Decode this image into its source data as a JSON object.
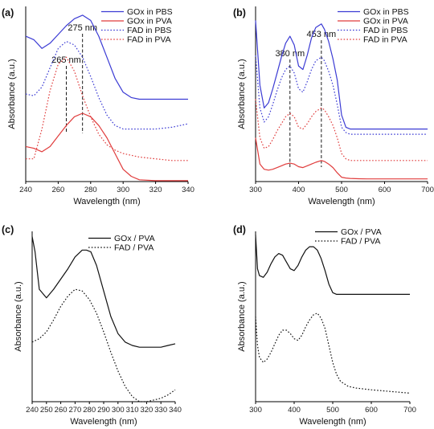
{
  "chart_data": [
    {
      "type": "line",
      "panel": "(a)",
      "xlabel": "Wavelength (nm)",
      "ylabel": "Absorbance (a.u.)",
      "xlim": [
        240,
        340
      ],
      "ylim": [
        0,
        1
      ],
      "xticks": [
        240,
        260,
        280,
        300,
        320,
        340
      ],
      "legend_position": "top-right",
      "annotations": [
        {
          "text": "265 nm",
          "x": 265
        },
        {
          "text": "275 nm",
          "x": 275
        }
      ],
      "series": [
        {
          "name": "GOx in PBS",
          "color": "#3b3bd4",
          "dash": "solid",
          "x": [
            240,
            245,
            250,
            255,
            260,
            265,
            270,
            275,
            280,
            285,
            290,
            295,
            300,
            305,
            310,
            320,
            330,
            340
          ],
          "y": [
            0.83,
            0.81,
            0.76,
            0.79,
            0.84,
            0.89,
            0.93,
            0.95,
            0.92,
            0.83,
            0.71,
            0.59,
            0.51,
            0.48,
            0.47,
            0.47,
            0.47,
            0.47
          ]
        },
        {
          "name": "GOx in PVA",
          "color": "#e03c3c",
          "dash": "solid",
          "x": [
            240,
            245,
            250,
            255,
            260,
            265,
            270,
            275,
            280,
            285,
            290,
            295,
            300,
            305,
            310,
            320,
            330,
            340
          ],
          "y": [
            0.2,
            0.19,
            0.17,
            0.2,
            0.26,
            0.32,
            0.37,
            0.39,
            0.37,
            0.32,
            0.25,
            0.16,
            0.07,
            0.03,
            0.01,
            0.005,
            0.005,
            0.005
          ]
        },
        {
          "name": "FAD in PBS",
          "color": "#3b3bd4",
          "dash": "dotted",
          "x": [
            240,
            245,
            250,
            255,
            260,
            265,
            270,
            275,
            280,
            285,
            290,
            295,
            300,
            305,
            310,
            320,
            330,
            340
          ],
          "y": [
            0.5,
            0.49,
            0.54,
            0.65,
            0.76,
            0.8,
            0.78,
            0.71,
            0.6,
            0.48,
            0.38,
            0.32,
            0.3,
            0.3,
            0.3,
            0.3,
            0.31,
            0.33
          ]
        },
        {
          "name": "FAD in PVA",
          "color": "#e03c3c",
          "dash": "dotted",
          "x": [
            240,
            245,
            250,
            255,
            260,
            265,
            270,
            275,
            280,
            285,
            290,
            295,
            300,
            305,
            310,
            320,
            330,
            340
          ],
          "y": [
            0.13,
            0.13,
            0.3,
            0.52,
            0.67,
            0.71,
            0.63,
            0.49,
            0.37,
            0.27,
            0.21,
            0.18,
            0.16,
            0.15,
            0.14,
            0.13,
            0.12,
            0.12
          ]
        }
      ]
    },
    {
      "type": "line",
      "panel": "(b)",
      "xlabel": "Wavelength (nm)",
      "ylabel": "Absorbance (a.u.)",
      "xlim": [
        300,
        700
      ],
      "ylim": [
        0,
        1
      ],
      "xticks": [
        300,
        400,
        500,
        600,
        700
      ],
      "legend_position": "top-right",
      "annotations": [
        {
          "text": "380 nm",
          "x": 380
        },
        {
          "text": "453 nm",
          "x": 453
        }
      ],
      "series": [
        {
          "name": "GOx in PBS",
          "color": "#3b3bd4",
          "dash": "solid",
          "x": [
            300,
            310,
            320,
            330,
            340,
            350,
            360,
            370,
            380,
            390,
            400,
            410,
            420,
            430,
            440,
            453,
            460,
            470,
            480,
            490,
            500,
            510,
            520,
            540,
            560,
            600,
            650,
            700
          ],
          "y": [
            0.92,
            0.55,
            0.42,
            0.45,
            0.53,
            0.62,
            0.71,
            0.79,
            0.83,
            0.78,
            0.66,
            0.64,
            0.72,
            0.82,
            0.88,
            0.9,
            0.87,
            0.8,
            0.7,
            0.58,
            0.38,
            0.31,
            0.3,
            0.3,
            0.3,
            0.3,
            0.3,
            0.3
          ]
        },
        {
          "name": "GOx in PVA",
          "color": "#e03c3c",
          "dash": "solid",
          "x": [
            300,
            310,
            320,
            330,
            340,
            350,
            360,
            370,
            380,
            390,
            400,
            410,
            420,
            430,
            440,
            453,
            460,
            470,
            480,
            490,
            500,
            510,
            520,
            540,
            560,
            600,
            650,
            700
          ],
          "y": [
            0.25,
            0.1,
            0.07,
            0.065,
            0.07,
            0.08,
            0.09,
            0.1,
            0.105,
            0.1,
            0.085,
            0.08,
            0.09,
            0.1,
            0.11,
            0.12,
            0.115,
            0.1,
            0.08,
            0.05,
            0.025,
            0.02,
            0.018,
            0.016,
            0.015,
            0.015,
            0.015,
            0.015
          ]
        },
        {
          "name": "FAD in PBS",
          "color": "#3b3bd4",
          "dash": "dotted",
          "x": [
            300,
            310,
            320,
            330,
            340,
            350,
            360,
            370,
            380,
            390,
            400,
            410,
            420,
            430,
            440,
            453,
            460,
            470,
            480,
            490,
            500,
            510,
            520,
            540,
            560,
            600,
            650,
            700
          ],
          "y": [
            0.72,
            0.42,
            0.34,
            0.37,
            0.44,
            0.52,
            0.59,
            0.64,
            0.66,
            0.62,
            0.53,
            0.51,
            0.57,
            0.64,
            0.69,
            0.71,
            0.69,
            0.63,
            0.55,
            0.44,
            0.31,
            0.28,
            0.27,
            0.27,
            0.27,
            0.27,
            0.27,
            0.27
          ]
        },
        {
          "name": "FAD in PVA",
          "color": "#e03c3c",
          "dash": "dotted",
          "x": [
            300,
            310,
            320,
            330,
            340,
            350,
            360,
            370,
            380,
            390,
            400,
            410,
            420,
            430,
            440,
            453,
            460,
            470,
            480,
            490,
            500,
            510,
            520,
            540,
            560,
            600,
            650,
            700
          ],
          "y": [
            0.47,
            0.25,
            0.19,
            0.2,
            0.24,
            0.29,
            0.33,
            0.37,
            0.39,
            0.37,
            0.31,
            0.3,
            0.33,
            0.37,
            0.4,
            0.42,
            0.41,
            0.37,
            0.32,
            0.25,
            0.16,
            0.13,
            0.12,
            0.12,
            0.12,
            0.12,
            0.12,
            0.12
          ]
        }
      ]
    },
    {
      "type": "line",
      "panel": "(c)",
      "xlabel": "Wavelength (nm)",
      "ylabel": "Absorbance (a.u.)",
      "xlim": [
        240,
        340
      ],
      "ylim": [
        0,
        1
      ],
      "xticks": [
        240,
        250,
        260,
        270,
        280,
        290,
        300,
        310,
        320,
        330,
        340
      ],
      "legend_position": "top-right",
      "series": [
        {
          "name": "GOx / PVA",
          "color": "#111111",
          "dash": "solid",
          "x": [
            240,
            242,
            245,
            250,
            255,
            260,
            265,
            270,
            275,
            278,
            281,
            285,
            290,
            295,
            300,
            305,
            310,
            315,
            320,
            325,
            330,
            335,
            340
          ],
          "y": [
            0.97,
            0.88,
            0.66,
            0.61,
            0.66,
            0.72,
            0.78,
            0.85,
            0.89,
            0.89,
            0.88,
            0.8,
            0.65,
            0.5,
            0.4,
            0.35,
            0.33,
            0.32,
            0.32,
            0.32,
            0.32,
            0.33,
            0.34
          ]
        },
        {
          "name": "FAD / PVA",
          "color": "#111111",
          "dash": "dotted",
          "x": [
            240,
            245,
            250,
            255,
            260,
            265,
            270,
            275,
            280,
            285,
            290,
            295,
            300,
            305,
            310,
            315,
            320,
            325,
            330,
            335,
            340
          ],
          "y": [
            0.35,
            0.37,
            0.41,
            0.48,
            0.56,
            0.62,
            0.66,
            0.65,
            0.6,
            0.52,
            0.41,
            0.29,
            0.18,
            0.09,
            0.03,
            0.0,
            0.0,
            0.01,
            0.02,
            0.04,
            0.07
          ]
        }
      ]
    },
    {
      "type": "line",
      "panel": "(d)",
      "xlabel": "Wavelength (nm)",
      "ylabel": "Absorbance (a.u.)",
      "xlim": [
        300,
        700
      ],
      "ylim": [
        0,
        1
      ],
      "xticks": [
        300,
        400,
        500,
        600,
        700
      ],
      "legend_position": "top-right",
      "series": [
        {
          "name": "GOx / PVA",
          "color": "#111111",
          "dash": "solid",
          "x": [
            300,
            305,
            310,
            320,
            330,
            340,
            350,
            360,
            370,
            380,
            390,
            400,
            410,
            420,
            430,
            440,
            450,
            460,
            470,
            480,
            490,
            500,
            510,
            520,
            540,
            560,
            600,
            650,
            700
          ],
          "y": [
            0.98,
            0.78,
            0.74,
            0.73,
            0.76,
            0.81,
            0.85,
            0.87,
            0.86,
            0.82,
            0.78,
            0.77,
            0.8,
            0.85,
            0.89,
            0.91,
            0.91,
            0.89,
            0.84,
            0.77,
            0.69,
            0.64,
            0.63,
            0.63,
            0.63,
            0.63,
            0.63,
            0.63,
            0.63
          ]
        },
        {
          "name": "FAD / PVA",
          "color": "#111111",
          "dash": "dotted",
          "x": [
            300,
            305,
            310,
            320,
            330,
            340,
            350,
            360,
            370,
            380,
            390,
            400,
            410,
            420,
            430,
            440,
            450,
            460,
            470,
            480,
            490,
            500,
            510,
            520,
            540,
            560,
            600,
            650,
            700
          ],
          "y": [
            0.5,
            0.33,
            0.26,
            0.23,
            0.25,
            0.29,
            0.34,
            0.39,
            0.42,
            0.42,
            0.4,
            0.37,
            0.36,
            0.39,
            0.44,
            0.48,
            0.51,
            0.52,
            0.49,
            0.43,
            0.33,
            0.23,
            0.16,
            0.12,
            0.09,
            0.08,
            0.07,
            0.06,
            0.05
          ]
        }
      ]
    }
  ]
}
